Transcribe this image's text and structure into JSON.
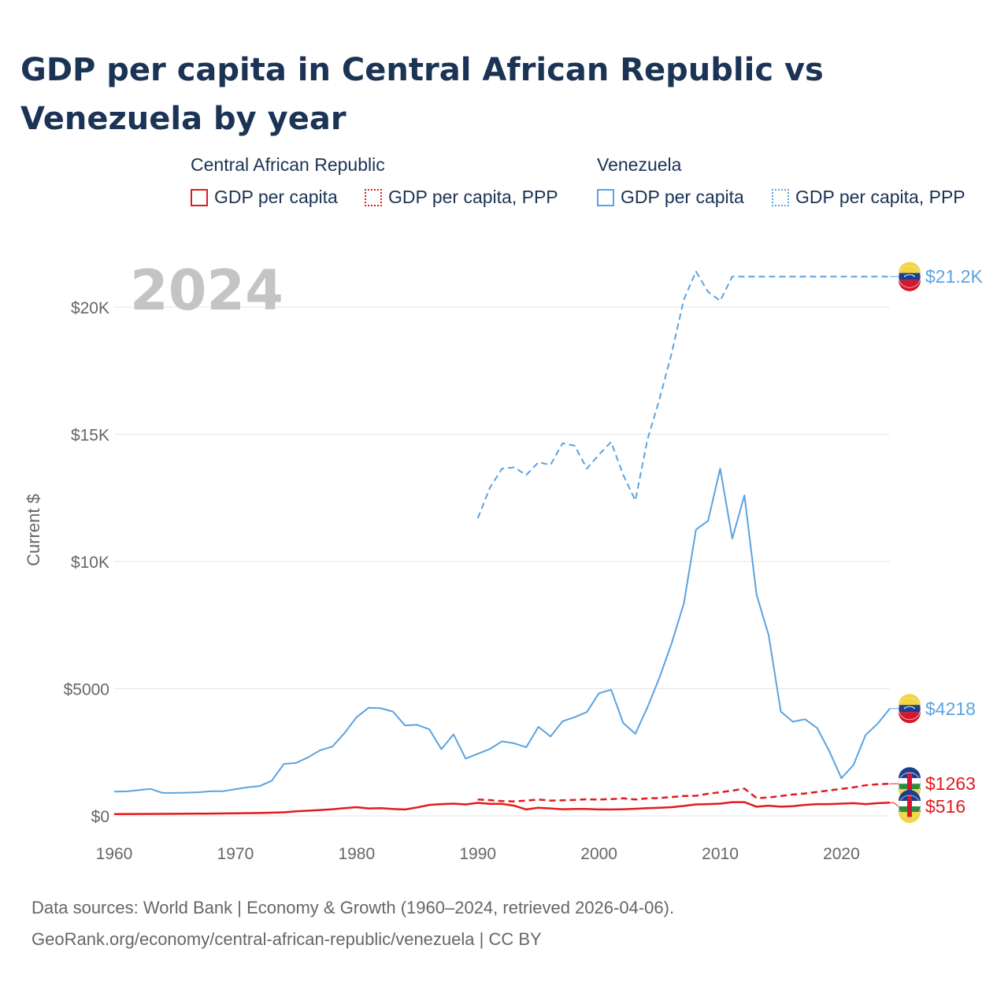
{
  "title": "GDP per capita in Central African Republic vs Venezuela by year",
  "legend": {
    "groups": [
      {
        "name": "Central African Republic",
        "items": [
          "GDP per capita",
          "GDP per capita, PPP"
        ]
      },
      {
        "name": "Venezuela",
        "items": [
          "GDP per capita",
          "GDP per capita, PPP"
        ]
      }
    ]
  },
  "colors": {
    "car": "#e31a1c",
    "ven": "#5ba3e0",
    "grid": "#e6e6e6"
  },
  "source": {
    "line1": "Data sources: World Bank | Economy & Growth (1960–2024, retrieved 2026-04-06).",
    "line2": "GeoRank.org/economy/central-african-republic/venezuela | CC BY"
  },
  "chart_data": {
    "type": "line",
    "year_label": "2024",
    "ylabel": "Current $",
    "xlim": [
      1960,
      2024
    ],
    "ylim": [
      0,
      22000
    ],
    "x_ticks": [
      1960,
      1970,
      1980,
      1990,
      2000,
      2010,
      2020
    ],
    "y_ticks": [
      {
        "value": 0,
        "label": "$0"
      },
      {
        "value": 5000,
        "label": "$5000"
      },
      {
        "value": 10000,
        "label": "$10K"
      },
      {
        "value": 15000,
        "label": "$15K"
      },
      {
        "value": 20000,
        "label": "$20K"
      }
    ],
    "series": [
      {
        "name": "Venezuela GDP per capita, PPP",
        "country": "ven",
        "dash": "dashed",
        "end_label": "$21.2K",
        "flag": "venezuela-flag-icon",
        "points": [
          [
            1990,
            11700
          ],
          [
            1991,
            12900
          ],
          [
            1992,
            13650
          ],
          [
            1993,
            13700
          ],
          [
            1994,
            13400
          ],
          [
            1995,
            13900
          ],
          [
            1996,
            13800
          ],
          [
            1997,
            14650
          ],
          [
            1998,
            14550
          ],
          [
            1999,
            13650
          ],
          [
            2000,
            14200
          ],
          [
            2001,
            14700
          ],
          [
            2002,
            13400
          ],
          [
            2003,
            12400
          ],
          [
            2004,
            14800
          ],
          [
            2005,
            16400
          ],
          [
            2006,
            18200
          ],
          [
            2007,
            20300
          ],
          [
            2008,
            21400
          ],
          [
            2009,
            20600
          ],
          [
            2010,
            20250
          ],
          [
            2011,
            21200
          ],
          [
            2024,
            21200
          ]
        ]
      },
      {
        "name": "Venezuela GDP per capita",
        "country": "ven",
        "dash": "solid",
        "end_label": "$4218",
        "flag": "venezuela-flag-icon",
        "points": [
          [
            1960,
            950
          ],
          [
            1961,
            960
          ],
          [
            1962,
            1010
          ],
          [
            1963,
            1060
          ],
          [
            1964,
            900
          ],
          [
            1965,
            900
          ],
          [
            1966,
            910
          ],
          [
            1967,
            930
          ],
          [
            1968,
            970
          ],
          [
            1969,
            970
          ],
          [
            1970,
            1050
          ],
          [
            1971,
            1120
          ],
          [
            1972,
            1170
          ],
          [
            1973,
            1380
          ],
          [
            1974,
            2040
          ],
          [
            1975,
            2080
          ],
          [
            1976,
            2300
          ],
          [
            1977,
            2580
          ],
          [
            1978,
            2720
          ],
          [
            1979,
            3250
          ],
          [
            1980,
            3880
          ],
          [
            1981,
            4250
          ],
          [
            1982,
            4230
          ],
          [
            1983,
            4100
          ],
          [
            1984,
            3550
          ],
          [
            1985,
            3580
          ],
          [
            1986,
            3400
          ],
          [
            1987,
            2620
          ],
          [
            1988,
            3200
          ],
          [
            1989,
            2250
          ],
          [
            1990,
            2440
          ],
          [
            1991,
            2630
          ],
          [
            1992,
            2930
          ],
          [
            1993,
            2850
          ],
          [
            1994,
            2700
          ],
          [
            1995,
            3500
          ],
          [
            1996,
            3120
          ],
          [
            1997,
            3720
          ],
          [
            1998,
            3880
          ],
          [
            1999,
            4080
          ],
          [
            2000,
            4820
          ],
          [
            2001,
            4960
          ],
          [
            2002,
            3650
          ],
          [
            2003,
            3230
          ],
          [
            2004,
            4270
          ],
          [
            2005,
            5450
          ],
          [
            2006,
            6800
          ],
          [
            2007,
            8350
          ],
          [
            2008,
            11250
          ],
          [
            2009,
            11600
          ],
          [
            2010,
            13650
          ],
          [
            2011,
            10900
          ],
          [
            2012,
            12600
          ],
          [
            2013,
            8700
          ],
          [
            2014,
            7100
          ],
          [
            2015,
            4100
          ],
          [
            2016,
            3700
          ],
          [
            2017,
            3800
          ],
          [
            2018,
            3450
          ],
          [
            2019,
            2550
          ],
          [
            2020,
            1480
          ],
          [
            2021,
            2000
          ],
          [
            2022,
            3180
          ],
          [
            2023,
            3630
          ],
          [
            2024,
            4218
          ]
        ]
      },
      {
        "name": "Central African Republic GDP per capita, PPP",
        "country": "car",
        "dash": "dashed",
        "end_label": "$1263",
        "flag": "central-african-republic-flag-icon",
        "points": [
          [
            1990,
            640
          ],
          [
            1991,
            620
          ],
          [
            1992,
            580
          ],
          [
            1993,
            570
          ],
          [
            1994,
            600
          ],
          [
            1995,
            640
          ],
          [
            1996,
            600
          ],
          [
            1997,
            610
          ],
          [
            1998,
            630
          ],
          [
            1999,
            650
          ],
          [
            2000,
            640
          ],
          [
            2001,
            660
          ],
          [
            2002,
            690
          ],
          [
            2003,
            640
          ],
          [
            2004,
            690
          ],
          [
            2005,
            700
          ],
          [
            2006,
            740
          ],
          [
            2007,
            780
          ],
          [
            2008,
            790
          ],
          [
            2009,
            870
          ],
          [
            2010,
            930
          ],
          [
            2011,
            990
          ],
          [
            2012,
            1070
          ],
          [
            2013,
            700
          ],
          [
            2014,
            720
          ],
          [
            2015,
            780
          ],
          [
            2016,
            840
          ],
          [
            2017,
            880
          ],
          [
            2018,
            940
          ],
          [
            2019,
            1000
          ],
          [
            2020,
            1060
          ],
          [
            2021,
            1120
          ],
          [
            2022,
            1200
          ],
          [
            2023,
            1240
          ],
          [
            2024,
            1263
          ]
        ]
      },
      {
        "name": "Central African Republic GDP per capita",
        "country": "car",
        "dash": "solid",
        "end_label": "$516",
        "flag": "central-african-republic-flag-icon",
        "points": [
          [
            1960,
            70
          ],
          [
            1962,
            75
          ],
          [
            1965,
            80
          ],
          [
            1968,
            90
          ],
          [
            1970,
            100
          ],
          [
            1972,
            110
          ],
          [
            1974,
            140
          ],
          [
            1975,
            180
          ],
          [
            1976,
            200
          ],
          [
            1977,
            230
          ],
          [
            1978,
            260
          ],
          [
            1979,
            300
          ],
          [
            1980,
            340
          ],
          [
            1981,
            290
          ],
          [
            1982,
            300
          ],
          [
            1983,
            270
          ],
          [
            1984,
            250
          ],
          [
            1985,
            330
          ],
          [
            1986,
            430
          ],
          [
            1987,
            460
          ],
          [
            1988,
            480
          ],
          [
            1989,
            450
          ],
          [
            1990,
            510
          ],
          [
            1991,
            470
          ],
          [
            1992,
            470
          ],
          [
            1993,
            400
          ],
          [
            1994,
            250
          ],
          [
            1995,
            320
          ],
          [
            1996,
            290
          ],
          [
            1997,
            260
          ],
          [
            1998,
            270
          ],
          [
            1999,
            270
          ],
          [
            2000,
            250
          ],
          [
            2001,
            250
          ],
          [
            2002,
            260
          ],
          [
            2003,
            280
          ],
          [
            2004,
            300
          ],
          [
            2005,
            320
          ],
          [
            2006,
            340
          ],
          [
            2007,
            390
          ],
          [
            2008,
            450
          ],
          [
            2009,
            460
          ],
          [
            2010,
            480
          ],
          [
            2011,
            540
          ],
          [
            2012,
            540
          ],
          [
            2013,
            360
          ],
          [
            2014,
            400
          ],
          [
            2015,
            360
          ],
          [
            2016,
            380
          ],
          [
            2017,
            430
          ],
          [
            2018,
            460
          ],
          [
            2019,
            460
          ],
          [
            2020,
            480
          ],
          [
            2021,
            500
          ],
          [
            2022,
            460
          ],
          [
            2023,
            500
          ],
          [
            2024,
            516
          ]
        ]
      }
    ]
  }
}
